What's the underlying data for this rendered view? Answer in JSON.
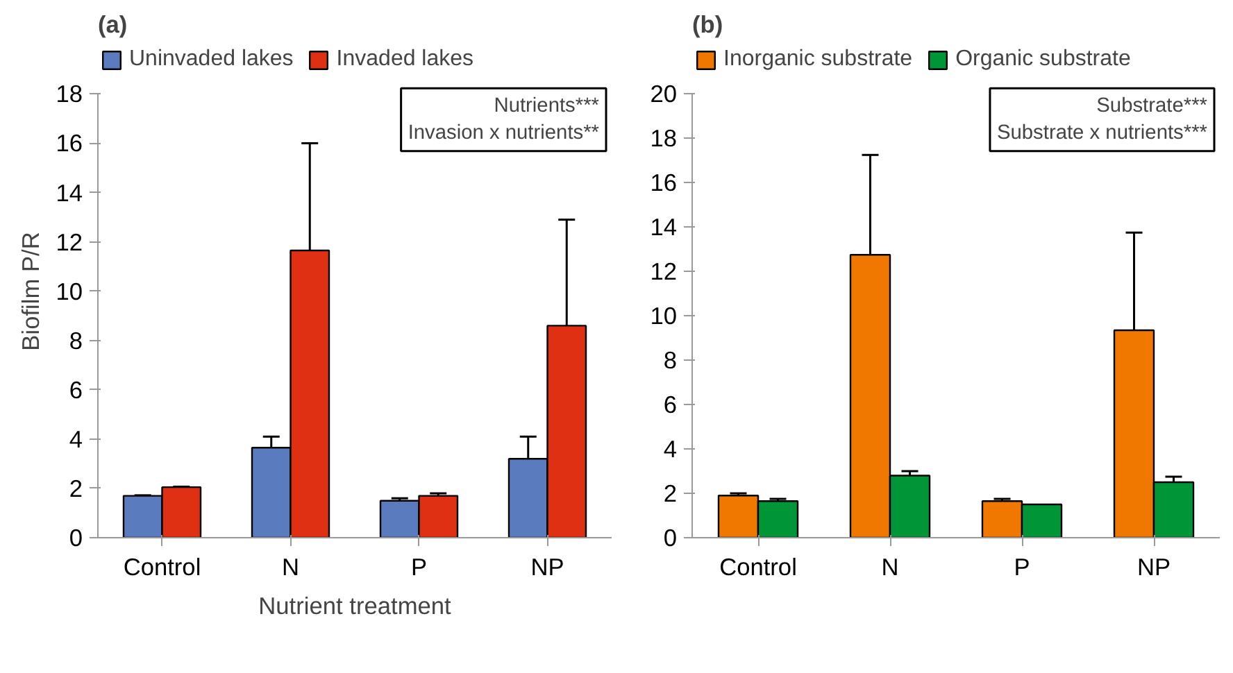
{
  "chart_data": [
    {
      "type": "bar",
      "title": "(a)",
      "xlabel": "Nutrient treatment",
      "ylabel": "Biofilm P/R",
      "categories": [
        "Control",
        "N",
        "P",
        "NP"
      ],
      "ylim": [
        0,
        18
      ],
      "yticks": [
        0,
        2,
        4,
        6,
        8,
        10,
        12,
        14,
        16,
        18
      ],
      "grid": false,
      "legend": "top",
      "annotations": [
        "Nutrients***",
        "Invasion x nutrients**"
      ],
      "series": [
        {
          "name": "Uninvaded lakes",
          "color": "#5b7bbf",
          "values": [
            1.7,
            3.65,
            1.5,
            3.2
          ],
          "errors": [
            [
              1.7,
              1.72
            ],
            [
              3.65,
              4.1
            ],
            [
              1.5,
              1.6
            ],
            [
              3.2,
              4.1
            ]
          ]
        },
        {
          "name": "Invaded lakes",
          "color": "#e03014",
          "values": [
            2.05,
            11.65,
            1.7,
            8.6
          ],
          "errors": [
            [
              2.05,
              2.07
            ],
            [
              11.65,
              16.0
            ],
            [
              1.7,
              1.8
            ],
            [
              8.6,
              12.9
            ]
          ]
        }
      ]
    },
    {
      "type": "bar",
      "title": "(b)",
      "categories": [
        "Control",
        "N",
        "P",
        "NP"
      ],
      "ylim": [
        0,
        20
      ],
      "yticks": [
        0,
        2,
        4,
        6,
        8,
        10,
        12,
        14,
        16,
        18,
        20
      ],
      "grid": false,
      "legend": "top",
      "annotations": [
        "Substrate***",
        "Substrate x nutrients***"
      ],
      "series": [
        {
          "name": "Inorganic substrate",
          "color": "#f07800",
          "values": [
            1.9,
            12.75,
            1.65,
            9.35
          ],
          "errors": [
            [
              1.9,
              2.0
            ],
            [
              12.75,
              17.25
            ],
            [
              1.65,
              1.75
            ],
            [
              9.35,
              13.75
            ]
          ]
        },
        {
          "name": "Organic substrate",
          "color": "#009637",
          "values": [
            1.65,
            2.8,
            1.5,
            2.5
          ],
          "errors": [
            [
              1.65,
              1.75
            ],
            [
              2.8,
              3.0
            ],
            null,
            [
              2.5,
              2.75
            ]
          ]
        }
      ]
    }
  ]
}
